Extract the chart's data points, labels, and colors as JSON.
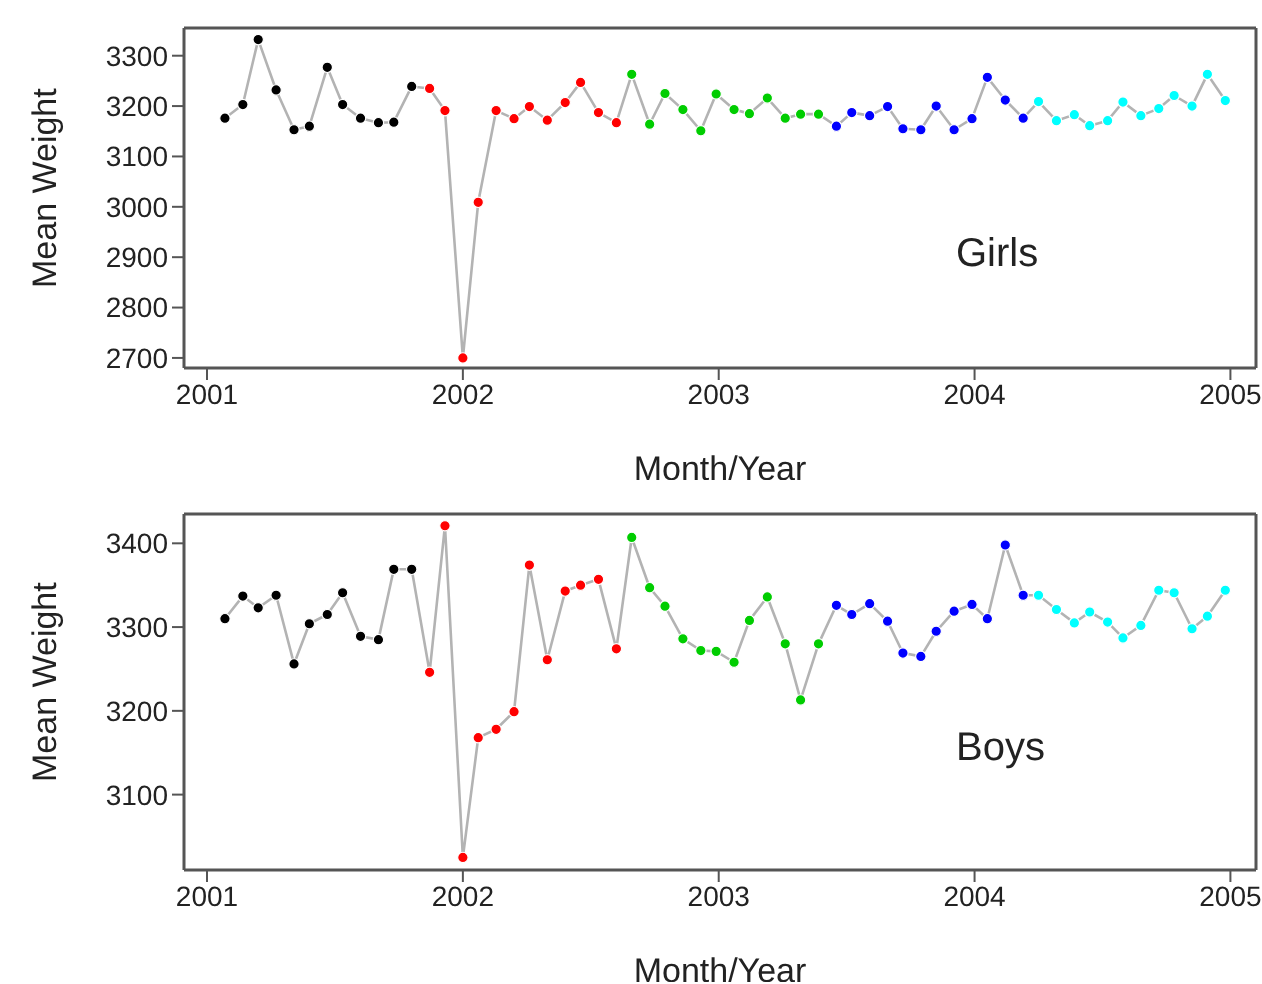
{
  "chart_data": [
    {
      "type": "line",
      "ylabel": "Mean Weight",
      "xlabel": "Month/Year",
      "annotations": [
        "Girls"
      ],
      "marker": "circle",
      "grid": false,
      "legend": false,
      "x": [
        2001.07,
        2001.14,
        2001.2,
        2001.27,
        2001.34,
        2001.4,
        2001.47,
        2001.53,
        2001.6,
        2001.67,
        2001.73,
        2001.8,
        2001.87,
        2001.93,
        2002.0,
        2002.06,
        2002.13,
        2002.2,
        2002.26,
        2002.33,
        2002.4,
        2002.46,
        2002.53,
        2002.6,
        2002.66,
        2002.73,
        2002.79,
        2002.86,
        2002.93,
        2002.99,
        2003.06,
        2003.12,
        2003.19,
        2003.26,
        2003.32,
        2003.39,
        2003.46,
        2003.52,
        2003.59,
        2003.66,
        2003.72,
        2003.79,
        2003.85,
        2003.92,
        2003.99,
        2004.05,
        2004.12,
        2004.19,
        2004.25,
        2004.32,
        2004.39,
        2004.45,
        2004.52,
        2004.58,
        2004.65,
        2004.72,
        2004.78,
        2004.85,
        2004.91,
        2004.98
      ],
      "xlim": [
        2000.91,
        2005.1
      ],
      "xticks": [
        2001,
        2002,
        2003,
        2004,
        2005
      ],
      "ylim": [
        2680,
        3355
      ],
      "yticks": [
        2700,
        2800,
        2900,
        3000,
        3100,
        3200,
        3300
      ],
      "series": [
        {
          "color": "#b3b3b3",
          "values": [
            3176,
            3203,
            3332,
            3232,
            3153,
            3160,
            3277,
            3203,
            3176,
            3167,
            3168,
            3239,
            3235,
            3191,
            2700,
            3009,
            3191,
            3175,
            3199,
            3172,
            3207,
            3247,
            3187,
            3167,
            3263,
            3164,
            3225,
            3193,
            3151,
            3224,
            3193,
            3185,
            3216,
            3176,
            3184,
            3184,
            3160,
            3187,
            3181,
            3199,
            3155,
            3153,
            3200,
            3153,
            3175,
            3257,
            3212,
            3176,
            3209,
            3171,
            3183,
            3161,
            3171,
            3208,
            3181,
            3195,
            3221,
            3200,
            3263,
            3211
          ],
          "colors": [
            "#000000",
            "#000000",
            "#000000",
            "#000000",
            "#000000",
            "#000000",
            "#000000",
            "#000000",
            "#000000",
            "#000000",
            "#000000",
            "#000000",
            "#ff0000",
            "#ff0000",
            "#ff0000",
            "#ff0000",
            "#ff0000",
            "#ff0000",
            "#ff0000",
            "#ff0000",
            "#ff0000",
            "#ff0000",
            "#ff0000",
            "#ff0000",
            "#00cd00",
            "#00cd00",
            "#00cd00",
            "#00cd00",
            "#00cd00",
            "#00cd00",
            "#00cd00",
            "#00cd00",
            "#00cd00",
            "#00cd00",
            "#00cd00",
            "#00cd00",
            "#0000ff",
            "#0000ff",
            "#0000ff",
            "#0000ff",
            "#0000ff",
            "#0000ff",
            "#0000ff",
            "#0000ff",
            "#0000ff",
            "#0000ff",
            "#0000ff",
            "#0000ff",
            "#00ffff",
            "#00ffff",
            "#00ffff",
            "#00ffff",
            "#00ffff",
            "#00ffff",
            "#00ffff",
            "#00ffff",
            "#00ffff",
            "#00ffff",
            "#00ffff",
            "#00ffff"
          ]
        }
      ]
    },
    {
      "type": "line",
      "ylabel": "Mean Weight",
      "xlabel": "Month/Year",
      "annotations": [
        "Boys"
      ],
      "marker": "circle",
      "grid": false,
      "legend": false,
      "x": [
        2001.07,
        2001.14,
        2001.2,
        2001.27,
        2001.34,
        2001.4,
        2001.47,
        2001.53,
        2001.6,
        2001.67,
        2001.73,
        2001.8,
        2001.87,
        2001.93,
        2002.0,
        2002.06,
        2002.13,
        2002.2,
        2002.26,
        2002.33,
        2002.4,
        2002.46,
        2002.53,
        2002.6,
        2002.66,
        2002.73,
        2002.79,
        2002.86,
        2002.93,
        2002.99,
        2003.06,
        2003.12,
        2003.19,
        2003.26,
        2003.32,
        2003.39,
        2003.46,
        2003.52,
        2003.59,
        2003.66,
        2003.72,
        2003.79,
        2003.85,
        2003.92,
        2003.99,
        2004.05,
        2004.12,
        2004.19,
        2004.25,
        2004.32,
        2004.39,
        2004.45,
        2004.52,
        2004.58,
        2004.65,
        2004.72,
        2004.78,
        2004.85,
        2004.91,
        2004.98
      ],
      "xlim": [
        2000.91,
        2005.1
      ],
      "xticks": [
        2001,
        2002,
        2003,
        2004,
        2005
      ],
      "ylim": [
        3010,
        3435
      ],
      "yticks": [
        3100,
        3200,
        3300,
        3400
      ],
      "series": [
        {
          "color": "#b3b3b3",
          "values": [
            3310,
            3337,
            3323,
            3338,
            3256,
            3304,
            3315,
            3341,
            3289,
            3285,
            3369,
            3369,
            3246,
            3421,
            3025,
            3168,
            3178,
            3199,
            3374,
            3261,
            3343,
            3350,
            3357,
            3274,
            3407,
            3347,
            3325,
            3286,
            3272,
            3271,
            3258,
            3308,
            3336,
            3280,
            3213,
            3280,
            3326,
            3315,
            3328,
            3307,
            3269,
            3265,
            3295,
            3319,
            3327,
            3310,
            3398,
            3338,
            3338,
            3321,
            3305,
            3318,
            3306,
            3287,
            3302,
            3344,
            3341,
            3298,
            3313,
            3344
          ],
          "colors": [
            "#000000",
            "#000000",
            "#000000",
            "#000000",
            "#000000",
            "#000000",
            "#000000",
            "#000000",
            "#000000",
            "#000000",
            "#000000",
            "#000000",
            "#ff0000",
            "#ff0000",
            "#ff0000",
            "#ff0000",
            "#ff0000",
            "#ff0000",
            "#ff0000",
            "#ff0000",
            "#ff0000",
            "#ff0000",
            "#ff0000",
            "#ff0000",
            "#00cd00",
            "#00cd00",
            "#00cd00",
            "#00cd00",
            "#00cd00",
            "#00cd00",
            "#00cd00",
            "#00cd00",
            "#00cd00",
            "#00cd00",
            "#00cd00",
            "#00cd00",
            "#0000ff",
            "#0000ff",
            "#0000ff",
            "#0000ff",
            "#0000ff",
            "#0000ff",
            "#0000ff",
            "#0000ff",
            "#0000ff",
            "#0000ff",
            "#0000ff",
            "#0000ff",
            "#00ffff",
            "#00ffff",
            "#00ffff",
            "#00ffff",
            "#00ffff",
            "#00ffff",
            "#00ffff",
            "#00ffff",
            "#00ffff",
            "#00ffff",
            "#00ffff",
            "#00ffff"
          ]
        }
      ]
    }
  ]
}
